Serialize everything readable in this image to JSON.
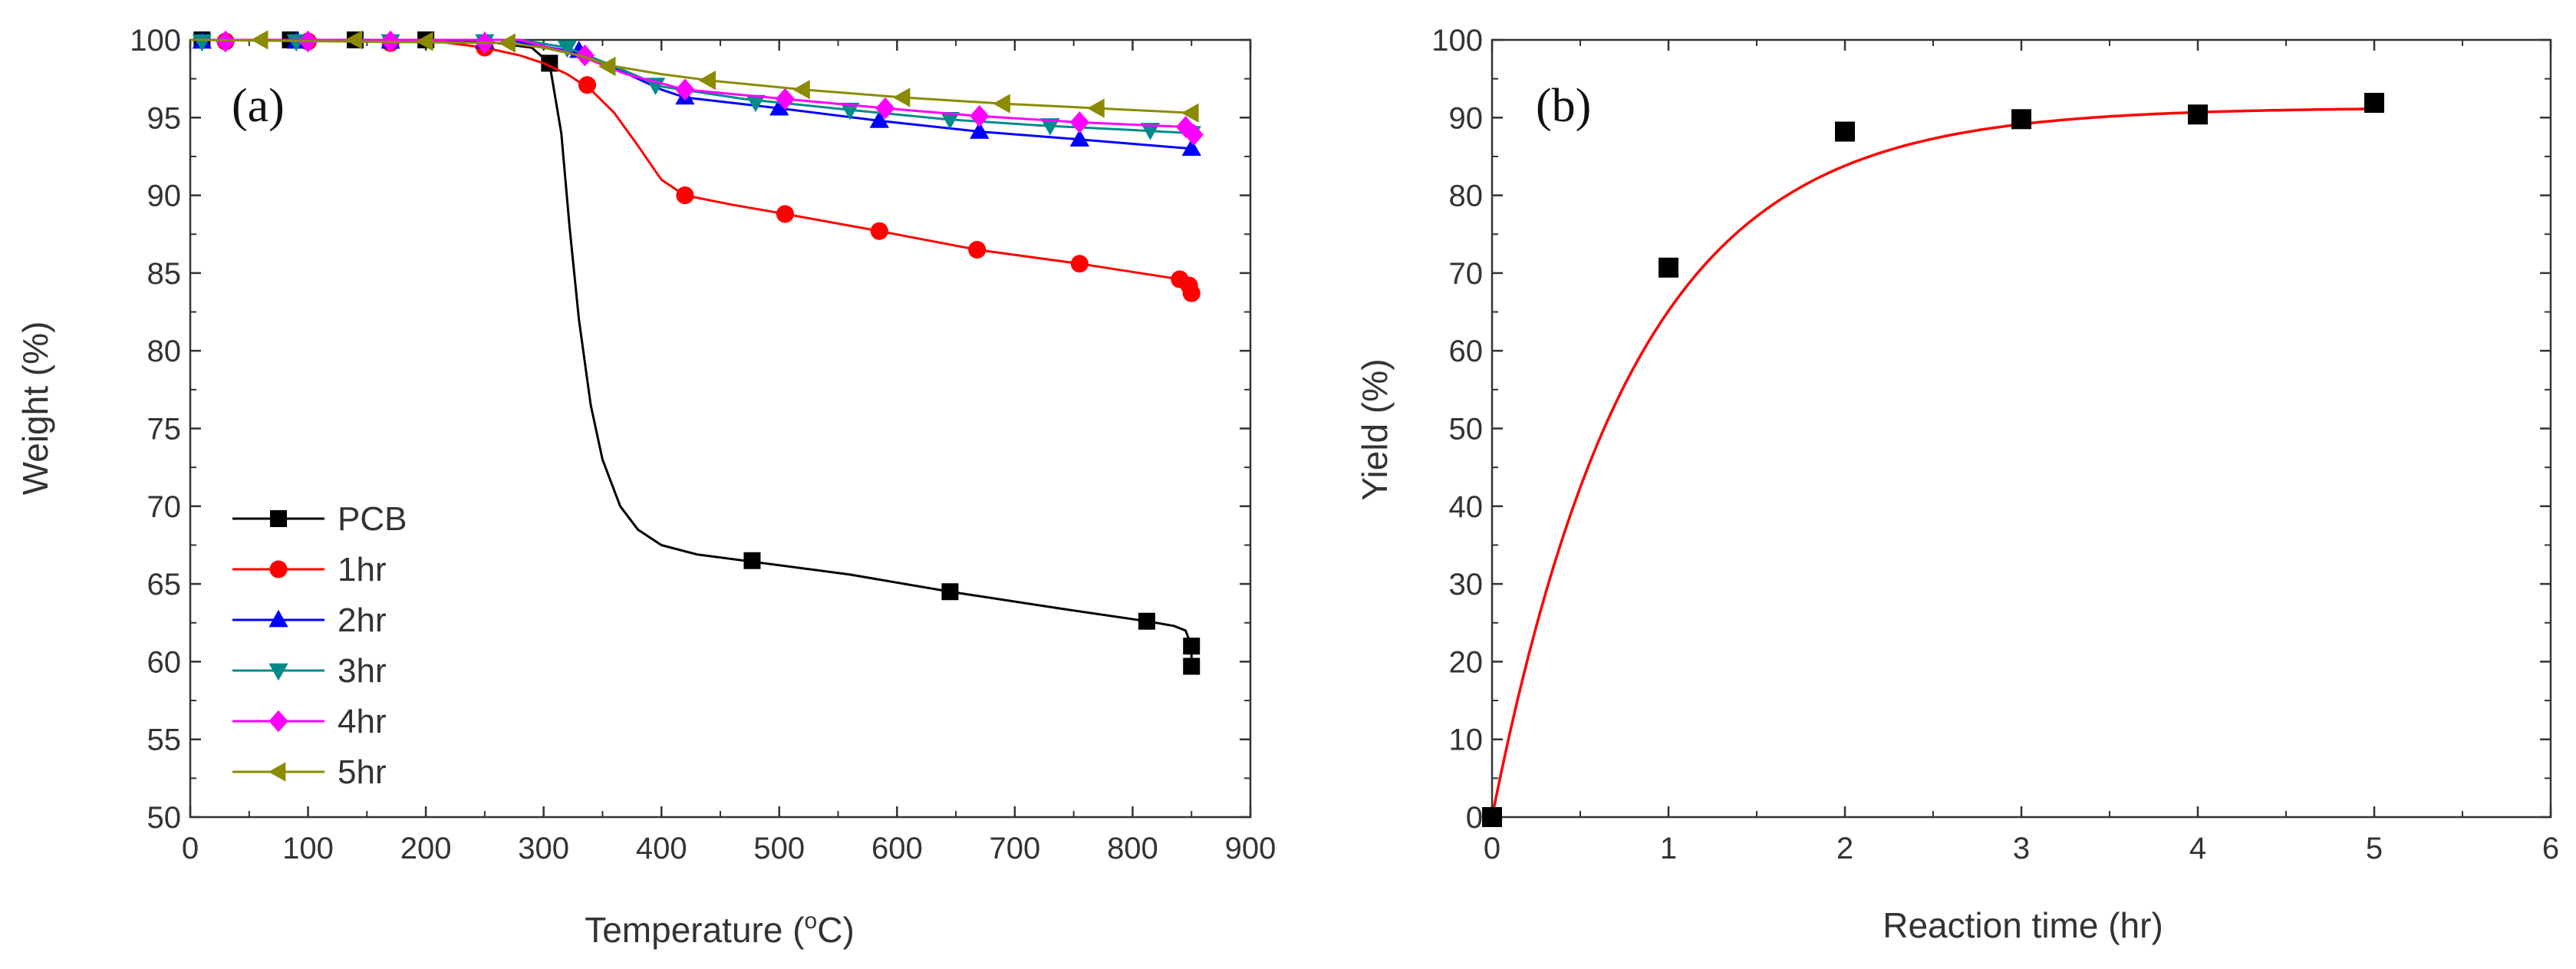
{
  "chart_data": [
    {
      "type": "line",
      "panel_label": "(a)",
      "xlabel": "Temperature (",
      "xlabel_sup": "o",
      "xlabel_unit": "C)",
      "ylabel": "Weight (%)",
      "xlim": [
        0,
        900
      ],
      "ylim": [
        50,
        100
      ],
      "xticks": [
        0,
        100,
        200,
        300,
        400,
        500,
        600,
        700,
        800,
        900
      ],
      "yticks": [
        50,
        55,
        60,
        65,
        70,
        75,
        80,
        85,
        90,
        95,
        100
      ],
      "grid": false,
      "legend_position": "bottom-left",
      "series": [
        {
          "name": "PCB",
          "color": "#000000",
          "marker": "square",
          "x": [
            0,
            150,
            250,
            290,
            305,
            315,
            322,
            330,
            340,
            350,
            365,
            380,
            400,
            430,
            480,
            560,
            645,
            740,
            812,
            835,
            845,
            850,
            850
          ],
          "y": [
            100,
            100,
            99.9,
            99.5,
            98.5,
            94,
            88,
            82,
            76.5,
            73,
            70,
            68.5,
            67.5,
            66.9,
            66.4,
            65.6,
            64.5,
            63.4,
            62.6,
            62.3,
            62,
            61,
            59.7
          ],
          "marker_x": [
            10,
            85,
            140,
            200,
            305,
            477,
            645,
            812,
            850,
            850
          ],
          "marker_y": [
            100,
            100,
            100,
            100,
            98.5,
            66.5,
            64.5,
            62.6,
            61,
            59.7
          ]
        },
        {
          "name": "1hr",
          "color": "#ff0000",
          "marker": "circle",
          "x": [
            0,
            200,
            250,
            280,
            300,
            320,
            340,
            360,
            380,
            400,
            420,
            460,
            505,
            585,
            668,
            755,
            840,
            848,
            850
          ],
          "y": [
            100,
            100,
            99.5,
            99,
            98.5,
            97.8,
            96.8,
            95.3,
            93.2,
            91,
            90,
            89.4,
            88.8,
            87.7,
            86.5,
            85.6,
            84.6,
            84.2,
            83.7
          ],
          "marker_x": [
            30,
            100,
            170,
            250,
            337,
            420,
            505,
            585,
            668,
            755,
            840,
            848,
            850
          ],
          "marker_y": [
            99.9,
            99.9,
            99.8,
            99.5,
            97.1,
            90,
            88.8,
            87.7,
            86.5,
            85.6,
            84.6,
            84.2,
            83.7
          ],
          "width": 3
        },
        {
          "name": "2hr",
          "color": "#0000ff",
          "marker": "triangle-up",
          "x": [
            0,
            270,
            320,
            360,
            400,
            420,
            500,
            585,
            670,
            755,
            850
          ],
          "y": [
            100,
            100,
            99.3,
            98.2,
            96.8,
            96.3,
            95.6,
            94.8,
            94.1,
            93.6,
            93
          ],
          "marker_x": [
            10,
            90,
            170,
            250,
            330,
            420,
            500,
            585,
            670,
            755,
            850
          ],
          "marker_y": [
            99.9,
            99.9,
            99.9,
            99.9,
            99.3,
            96.3,
            95.6,
            94.8,
            94.1,
            93.6,
            93
          ]
        },
        {
          "name": "3hr",
          "color": "#008b8b",
          "marker": "triangle-down",
          "x": [
            0,
            280,
            320,
            360,
            400,
            470,
            560,
            640,
            720,
            800,
            850
          ],
          "y": [
            100,
            100,
            99.5,
            98.3,
            97,
            96.2,
            95.5,
            94.9,
            94.5,
            94.2,
            94
          ],
          "marker_x": [
            10,
            90,
            170,
            250,
            320,
            395,
            480,
            560,
            645,
            730,
            815,
            850
          ],
          "marker_y": [
            99.9,
            99.9,
            99.9,
            99.9,
            99.5,
            97.1,
            96,
            95.5,
            94.9,
            94.5,
            94.2,
            94
          ]
        },
        {
          "name": "4hr",
          "color": "#ff00ff",
          "marker": "diamond",
          "x": [
            0,
            280,
            330,
            370,
            420,
            505,
            590,
            670,
            755,
            845,
            852
          ],
          "y": [
            100,
            100,
            99,
            97.8,
            96.8,
            96.2,
            95.6,
            95.1,
            94.7,
            94.4,
            93.9
          ],
          "marker_x": [
            30,
            100,
            170,
            250,
            335,
            420,
            505,
            590,
            670,
            755,
            845,
            852
          ],
          "marker_y": [
            99.9,
            99.9,
            99.9,
            99.8,
            99,
            96.8,
            96.2,
            95.6,
            95.1,
            94.7,
            94.4,
            93.9
          ]
        },
        {
          "name": "5hr",
          "color": "#8b8b00",
          "marker": "triangle-left",
          "x": [
            0,
            270,
            300,
            330,
            360,
            400,
            440,
            520,
            605,
            690,
            770,
            850
          ],
          "y": [
            100,
            99.8,
            99.5,
            99,
            98.3,
            97.8,
            97.4,
            96.8,
            96.3,
            95.9,
            95.6,
            95.3
          ],
          "marker_x": [
            60,
            140,
            200,
            270,
            355,
            440,
            520,
            605,
            690,
            770,
            850
          ],
          "marker_y": [
            100,
            100,
            99.9,
            99.8,
            98.3,
            97.4,
            96.8,
            96.3,
            95.9,
            95.6,
            95.3
          ]
        }
      ]
    },
    {
      "type": "scatter",
      "panel_label": "(b)",
      "xlabel": "Reaction time (hr)",
      "ylabel": "Yield (%)",
      "xlim": [
        0,
        6
      ],
      "ylim": [
        0,
        100
      ],
      "xticks": [
        0,
        1,
        2,
        3,
        4,
        5,
        6
      ],
      "yticks": [
        0,
        10,
        20,
        30,
        40,
        50,
        60,
        70,
        80,
        90,
        100
      ],
      "grid": false,
      "points": {
        "x": [
          0,
          1,
          2,
          3,
          4,
          5
        ],
        "y": [
          0,
          70.7,
          88.2,
          89.8,
          90.4,
          91.9
        ],
        "marker": "square",
        "color": "#000000"
      },
      "fit": {
        "type": "exponential",
        "plateau": 91.3,
        "rate": 1.25,
        "color": "#ff0000"
      }
    }
  ]
}
